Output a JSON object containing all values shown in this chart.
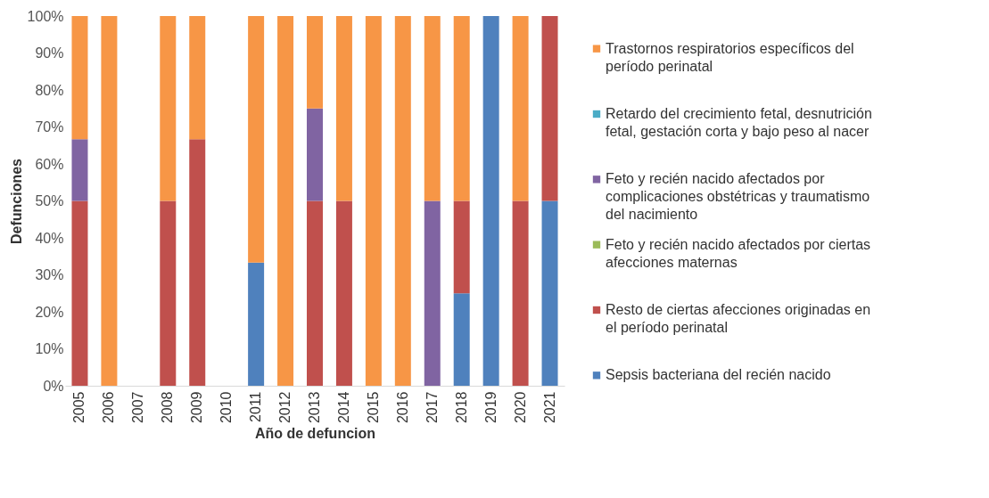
{
  "chart_data": {
    "type": "bar",
    "stacked": true,
    "xlabel": "Año de defuncion",
    "ylabel": "Defunciones",
    "categories": [
      "2005",
      "2006",
      "2007",
      "2008",
      "2009",
      "2010",
      "2011",
      "2012",
      "2013",
      "2014",
      "2015",
      "2016",
      "2017",
      "2018",
      "2019",
      "2020",
      "2021"
    ],
    "series": [
      {
        "name": "Sepsis bacteriana del recién nacido",
        "color": "#4f81bd",
        "values": [
          null,
          null,
          null,
          null,
          null,
          null,
          33.3,
          null,
          null,
          null,
          null,
          null,
          null,
          25,
          100,
          null,
          50
        ]
      },
      {
        "name": "Resto de ciertas afecciones originadas en el período perinatal",
        "color": "#c0504d",
        "values": [
          50,
          null,
          null,
          50,
          66.7,
          null,
          null,
          null,
          50,
          50,
          null,
          null,
          null,
          25,
          null,
          50,
          50
        ]
      },
      {
        "name": "Feto y recién nacido afectados por ciertas afecciones maternas",
        "color": "#9bbb59",
        "values": [
          null,
          null,
          null,
          null,
          null,
          null,
          null,
          null,
          null,
          null,
          null,
          null,
          null,
          null,
          null,
          null,
          null
        ]
      },
      {
        "name": "Feto y recién nacido afectados por complicaciones obstétricas y traumatismo del nacimiento",
        "color": "#8064a2",
        "values": [
          16.7,
          null,
          null,
          null,
          null,
          null,
          null,
          null,
          25,
          null,
          null,
          null,
          50,
          null,
          null,
          null,
          null
        ]
      },
      {
        "name": "Retardo del crecimiento fetal, desnutrición fetal, gestación corta y bajo peso al nacer",
        "color": "#4bacc6",
        "values": [
          null,
          null,
          null,
          null,
          null,
          null,
          null,
          null,
          null,
          null,
          null,
          null,
          null,
          null,
          null,
          null,
          null
        ]
      },
      {
        "name": "Trastornos respiratorios específicos del período perinatal",
        "color": "#f79646",
        "values": [
          33.3,
          100,
          null,
          50,
          33.3,
          null,
          66.7,
          100,
          25,
          50,
          100,
          100,
          50,
          50,
          null,
          50,
          null
        ]
      }
    ],
    "ylim": [
      0,
      100
    ],
    "yticks": [
      {
        "value": 0,
        "label": "0%"
      },
      {
        "value": 10,
        "label": "10%"
      },
      {
        "value": 20,
        "label": "20%"
      },
      {
        "value": 30,
        "label": "30%"
      },
      {
        "value": 40,
        "label": "40%"
      },
      {
        "value": 50,
        "label": "50%"
      },
      {
        "value": 60,
        "label": "60%"
      },
      {
        "value": 70,
        "label": "70%"
      },
      {
        "value": 80,
        "label": "80%"
      },
      {
        "value": 90,
        "label": "90%"
      },
      {
        "value": 100,
        "label": "100%"
      }
    ],
    "grid": false,
    "legend": "right"
  }
}
